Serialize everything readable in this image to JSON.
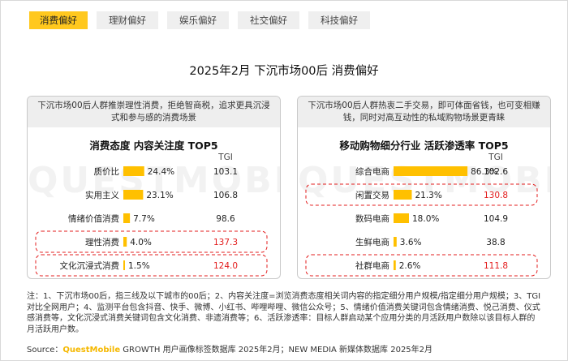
{
  "tabs": [
    {
      "label": "消费偏好",
      "active": true
    },
    {
      "label": "理财偏好",
      "active": false
    },
    {
      "label": "娱乐偏好",
      "active": false
    },
    {
      "label": "社交偏好",
      "active": false
    },
    {
      "label": "科技偏好",
      "active": false
    }
  ],
  "title": "2025年2月 下沉市场00后 消费偏好",
  "watermark": "QUESTMOBILE",
  "colors": {
    "bar": "#ffc000",
    "highlight_text": "#e31c1c",
    "highlight_border": "#e31c1c",
    "tab_active": "#ffc81e"
  },
  "panels": [
    {
      "desc": "下沉市场00后人群推崇理性消费，拒绝智商税，追求更具沉浸式和参与感的消费场景",
      "title": "消费态度 内容关注度 TOP5"
    },
    {
      "desc": "下沉市场00后人群热衷二手交易，即可体面省钱，也可变相赚钱，同时对高互动性的私域购物场景更青睐",
      "title": "移动购物细分行业 活跃渗透率 TOP5"
    }
  ],
  "chart_data": [
    {
      "type": "bar",
      "title": "消费态度 内容关注度 TOP5",
      "tgi_header": "TGI",
      "categories": [
        "质价比",
        "实用主义",
        "情绪价值消费",
        "理性消费",
        "文化沉浸式消费"
      ],
      "values": [
        24.4,
        23.1,
        7.7,
        4.0,
        1.5
      ],
      "value_labels": [
        "24.4%",
        "23.1%",
        "7.7%",
        "4.0%",
        "1.5%"
      ],
      "tgi": [
        "103.1",
        "106.8",
        "98.6",
        "137.3",
        "124.0"
      ],
      "highlighted": [
        false,
        false,
        false,
        true,
        true
      ],
      "xlim": [
        0,
        90
      ]
    },
    {
      "type": "bar",
      "title": "移动购物细分行业 活跃渗透率 TOP5",
      "tgi_header": "TGI",
      "categories": [
        "综合电商",
        "闲置交易",
        "数码电商",
        "生鲜电商",
        "社群电商"
      ],
      "values": [
        86.3,
        21.3,
        18.0,
        3.6,
        2.6
      ],
      "value_labels": [
        "86.3%",
        "21.3%",
        "18.0%",
        "3.6%",
        "2.6%"
      ],
      "tgi": [
        "102.6",
        "130.8",
        "104.9",
        "38.8",
        "111.8"
      ],
      "highlighted": [
        false,
        true,
        false,
        false,
        true
      ],
      "xlim": [
        0,
        90
      ]
    }
  ],
  "notes": "注：1、下沉市场00后，指三线及以下城市的00后；2、内容关注度=浏览消费态度相关词内容的指定细分用户规模/指定细分用户规模；3、TGI对比全网用户；4、监测平台包含抖音、快手、微博、小红书、哔哩哔哩、微信公众号；5、情绪价值消费关键词包含情绪消费、悦己消费、仪式感消费等，文化沉浸式消费关键词包含文化消费、非遗消费等；6、活跃渗透率：目标人群启动某个应用分类的月活跃用户数除以该目标人群的月活跃用户数。",
  "source": {
    "prefix": "Source：",
    "brand": "QuestMobile",
    "text": " GROWTH 用户画像标签数据库 2025年2月；NEW MEDIA 新媒体数据库 2025年2月"
  }
}
